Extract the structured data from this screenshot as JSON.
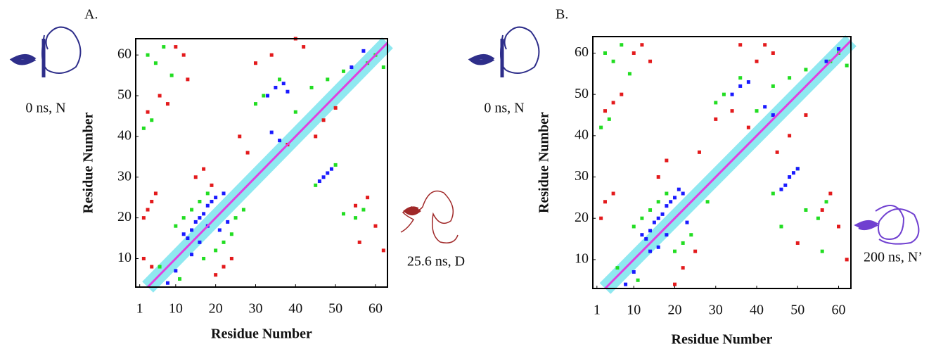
{
  "chart_data": [
    {
      "type": "scatter",
      "panel_label": "A.",
      "x_label": "Residue Number",
      "y_label": "Residue Number",
      "xlim": [
        0,
        63
      ],
      "ylim": [
        3,
        64
      ],
      "xticks": [
        1,
        10,
        20,
        30,
        40,
        50,
        60
      ],
      "yticks": [
        10,
        20,
        30,
        40,
        50,
        60
      ],
      "series": [
        {
          "color": "#e31a1c",
          "x": [
            2,
            3,
            4,
            5,
            3,
            6,
            8,
            10,
            12,
            45,
            47,
            50,
            55,
            58,
            60,
            62,
            20,
            22,
            24,
            38,
            40,
            42,
            15,
            17,
            19,
            2,
            4,
            13,
            26,
            28,
            56,
            30,
            34
          ],
          "y": [
            20,
            22,
            24,
            26,
            46,
            50,
            48,
            62,
            60,
            40,
            44,
            47,
            23,
            25,
            18,
            12,
            6,
            8,
            10,
            38,
            64,
            62,
            30,
            32,
            28,
            10,
            8,
            54,
            40,
            36,
            14,
            58,
            60
          ]
        },
        {
          "color": "#22dd22",
          "x": [
            10,
            12,
            14,
            16,
            18,
            20,
            22,
            24,
            45,
            50,
            52,
            55,
            57,
            3,
            5,
            7,
            9,
            30,
            32,
            36,
            40,
            44,
            48,
            52,
            58,
            60,
            62,
            2,
            4,
            6,
            11,
            17,
            25,
            27
          ],
          "y": [
            18,
            20,
            22,
            24,
            26,
            12,
            14,
            16,
            28,
            33,
            21,
            20,
            22,
            60,
            58,
            62,
            55,
            48,
            50,
            54,
            46,
            52,
            54,
            56,
            58,
            60,
            57,
            42,
            44,
            8,
            5,
            10,
            20,
            22
          ]
        },
        {
          "color": "#1a1aff",
          "x": [
            12,
            14,
            15,
            16,
            17,
            18,
            19,
            20,
            13,
            16,
            18,
            33,
            35,
            37,
            38,
            46,
            47,
            48,
            49,
            34,
            36,
            8,
            10,
            21,
            23,
            14,
            22,
            54,
            57
          ],
          "y": [
            16,
            17,
            19,
            20,
            21,
            23,
            24,
            25,
            15,
            14,
            18,
            50,
            52,
            53,
            51,
            29,
            30,
            31,
            32,
            41,
            39,
            4,
            7,
            17,
            19,
            11,
            26,
            57,
            61
          ]
        }
      ]
    },
    {
      "type": "scatter",
      "panel_label": "B.",
      "x_label": "Residue Number",
      "y_label": "Residue Number",
      "xlim": [
        0,
        63
      ],
      "ylim": [
        3,
        64
      ],
      "xticks": [
        1,
        10,
        20,
        30,
        40,
        50,
        60
      ],
      "yticks": [
        10,
        20,
        30,
        40,
        50,
        60
      ],
      "series": [
        {
          "color": "#e31a1c",
          "x": [
            2,
            3,
            5,
            7,
            10,
            12,
            14,
            45,
            48,
            52,
            56,
            58,
            60,
            62,
            20,
            22,
            25,
            40,
            42,
            44,
            16,
            18,
            3,
            5,
            30,
            34,
            38,
            50,
            36,
            26
          ],
          "y": [
            20,
            24,
            26,
            50,
            60,
            62,
            58,
            36,
            40,
            45,
            22,
            26,
            18,
            10,
            4,
            8,
            12,
            58,
            62,
            60,
            30,
            34,
            46,
            48,
            44,
            46,
            42,
            14,
            62,
            36
          ]
        },
        {
          "color": "#22dd22",
          "x": [
            10,
            12,
            14,
            16,
            18,
            20,
            22,
            24,
            44,
            50,
            52,
            55,
            57,
            3,
            5,
            7,
            9,
            30,
            32,
            36,
            40,
            44,
            48,
            52,
            58,
            60,
            62,
            2,
            4,
            6,
            11,
            28,
            46,
            56
          ],
          "y": [
            18,
            20,
            22,
            24,
            26,
            12,
            14,
            16,
            26,
            32,
            22,
            20,
            24,
            60,
            58,
            62,
            55,
            48,
            50,
            54,
            46,
            52,
            54,
            56,
            58,
            60,
            57,
            42,
            44,
            8,
            5,
            24,
            18,
            12
          ]
        },
        {
          "color": "#1a1aff",
          "x": [
            12,
            13,
            14,
            15,
            16,
            17,
            18,
            19,
            20,
            21,
            14,
            16,
            18,
            34,
            36,
            38,
            46,
            47,
            48,
            49,
            50,
            8,
            10,
            23,
            22,
            57,
            60,
            44,
            42
          ],
          "y": [
            16,
            15,
            17,
            19,
            20,
            21,
            23,
            24,
            25,
            27,
            12,
            13,
            16,
            50,
            52,
            53,
            27,
            28,
            30,
            31,
            32,
            4,
            7,
            19,
            26,
            58,
            61,
            45,
            47
          ]
        }
      ]
    }
  ],
  "structures": [
    {
      "caption": "0 ns, N"
    },
    {
      "caption": "25.6 ns, D"
    },
    {
      "caption": "0 ns, N"
    },
    {
      "caption": "200 ns, N’"
    }
  ]
}
